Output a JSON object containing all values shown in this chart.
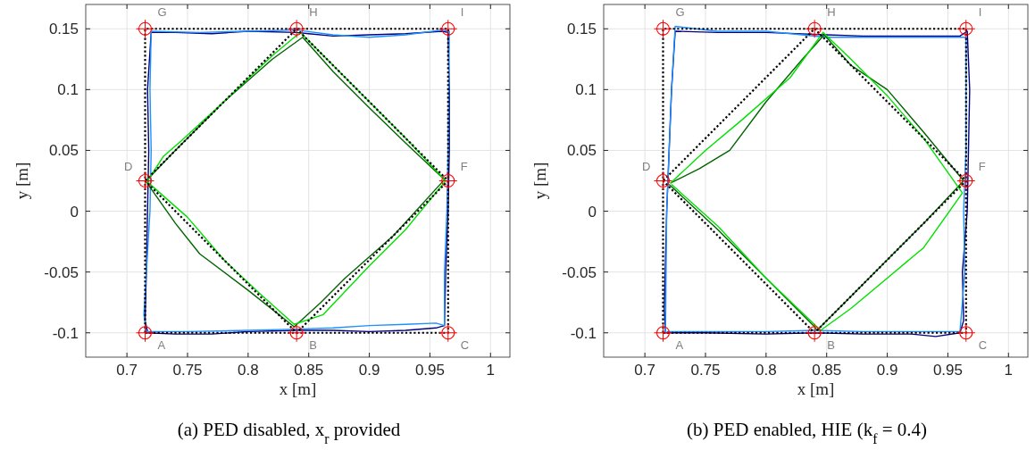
{
  "chart_data": [
    {
      "type": "line",
      "title": "(a) PED disabled, x$_{r}$ provided",
      "xlabel": "x [m]",
      "ylabel": "y [m]",
      "xlim": [
        0.666,
        1.016
      ],
      "ylim": [
        -0.12,
        0.17
      ],
      "xticks": [
        0.7,
        0.75,
        0.8,
        0.85,
        0.9,
        0.95,
        1
      ],
      "yticks": [
        -0.1,
        -0.05,
        0,
        0.05,
        0.1,
        0.15
      ],
      "grid": true,
      "annotations": [
        {
          "text": "A",
          "x": 0.715,
          "y": -0.1
        },
        {
          "text": "B",
          "x": 0.84,
          "y": -0.1
        },
        {
          "text": "C",
          "x": 0.965,
          "y": -0.1
        },
        {
          "text": "D",
          "x": 0.715,
          "y": 0.025
        },
        {
          "text": "F",
          "x": 0.965,
          "y": 0.025
        },
        {
          "text": "G",
          "x": 0.715,
          "y": 0.15
        },
        {
          "text": "H",
          "x": 0.84,
          "y": 0.15
        },
        {
          "text": "I",
          "x": 0.965,
          "y": 0.15
        }
      ],
      "series": [
        {
          "color": "#000080",
          "x": [
            0.716,
            0.74,
            0.77,
            0.8,
            0.84,
            0.87,
            0.9,
            0.93,
            0.955,
            0.962,
            0.963,
            0.965,
            0.966,
            0.966,
            0.965,
            0.96,
            0.93,
            0.9,
            0.87,
            0.85,
            0.84,
            0.8,
            0.77,
            0.74,
            0.72,
            0.717,
            0.718,
            0.717,
            0.716,
            0.715,
            0.717
          ],
          "values": [
            -0.1,
            -0.101,
            -0.101,
            -0.099,
            -0.098,
            -0.098,
            -0.099,
            -0.098,
            -0.096,
            -0.094,
            -0.05,
            0,
            0.05,
            0.1,
            0.147,
            0.148,
            0.146,
            0.145,
            0.144,
            0.146,
            0.147,
            0.148,
            0.146,
            0.147,
            0.147,
            0.1,
            0.05,
            0,
            -0.05,
            -0.09,
            -0.099
          ]
        },
        {
          "color": "#1e90ff",
          "x": [
            0.717,
            0.75,
            0.8,
            0.84,
            0.87,
            0.9,
            0.93,
            0.955,
            0.962,
            0.962,
            0.964,
            0.965,
            0.966,
            0.96,
            0.93,
            0.9,
            0.87,
            0.84,
            0.8,
            0.76,
            0.72,
            0.719,
            0.72,
            0.719,
            0.714,
            0.716
          ],
          "values": [
            -0.099,
            -0.099,
            -0.098,
            -0.097,
            -0.096,
            -0.094,
            -0.093,
            -0.092,
            -0.094,
            -0.05,
            0,
            0.05,
            0.148,
            0.149,
            0.145,
            0.143,
            0.145,
            0.149,
            0.148,
            0.147,
            0.148,
            0.1,
            0.05,
            0,
            -0.085,
            -0.1
          ]
        },
        {
          "color": "#006400",
          "x": [
            0.716,
            0.74,
            0.76,
            0.8,
            0.838,
            0.86,
            0.88,
            0.92,
            0.962,
            0.93,
            0.9,
            0.87,
            0.845,
            0.82,
            0.78,
            0.75,
            0.735,
            0.716
          ],
          "values": [
            0.024,
            -0.01,
            -0.035,
            -0.065,
            -0.095,
            -0.075,
            -0.055,
            -0.02,
            0.026,
            0.056,
            0.085,
            0.115,
            0.143,
            0.125,
            0.09,
            0.06,
            0.045,
            0.025
          ]
        },
        {
          "color": "#00e000",
          "x": [
            0.717,
            0.75,
            0.78,
            0.81,
            0.838,
            0.862,
            0.9,
            0.93,
            0.963,
            0.93,
            0.9,
            0.87,
            0.843,
            0.82,
            0.78,
            0.745,
            0.73,
            0.717
          ],
          "values": [
            0.024,
            -0.005,
            -0.04,
            -0.068,
            -0.093,
            -0.085,
            -0.045,
            -0.015,
            0.025,
            0.06,
            0.09,
            0.12,
            0.147,
            0.128,
            0.09,
            0.058,
            0.045,
            0.025
          ]
        },
        {
          "color": "#000000",
          "line_style": "dotted",
          "x": [
            0.715,
            0.84,
            0.965,
            0.965,
            0.965,
            0.84,
            0.715,
            0.715,
            0.84,
            0.965,
            0.84,
            0.715,
            null,
            0.715,
            0.715
          ],
          "values": [
            -0.1,
            -0.1,
            -0.1,
            0.025,
            0.15,
            0.15,
            0.15,
            0.025,
            -0.1,
            0.025,
            0.15,
            0.025,
            null,
            -0.1,
            0.025
          ]
        },
        {
          "type": "scatter",
          "marker": "circle",
          "color": "#ff0000",
          "x": [
            0.715,
            0.84,
            0.965,
            0.715,
            0.965,
            0.715,
            0.84,
            0.965
          ],
          "values": [
            -0.1,
            -0.1,
            -0.1,
            0.025,
            0.025,
            0.15,
            0.15,
            0.15
          ]
        }
      ]
    },
    {
      "type": "line",
      "title": "(b) PED enabled, HIE (k$_{f}$ = 0.4)",
      "xlabel": "x [m]",
      "ylabel": "y [m]",
      "xlim": [
        0.666,
        1.016
      ],
      "ylim": [
        -0.12,
        0.17
      ],
      "xticks": [
        0.7,
        0.75,
        0.8,
        0.85,
        0.9,
        0.95,
        1
      ],
      "yticks": [
        -0.1,
        -0.05,
        0,
        0.05,
        0.1,
        0.15
      ],
      "grid": true,
      "annotations": [
        {
          "text": "A",
          "x": 0.715,
          "y": -0.1
        },
        {
          "text": "B",
          "x": 0.84,
          "y": -0.1
        },
        {
          "text": "C",
          "x": 0.965,
          "y": -0.1
        },
        {
          "text": "D",
          "x": 0.715,
          "y": 0.025
        },
        {
          "text": "F",
          "x": 0.965,
          "y": 0.025
        },
        {
          "text": "G",
          "x": 0.715,
          "y": 0.15
        },
        {
          "text": "H",
          "x": 0.84,
          "y": 0.15
        },
        {
          "text": "I",
          "x": 0.965,
          "y": 0.15
        }
      ],
      "series": [
        {
          "color": "#000080",
          "x": [
            0.716,
            0.75,
            0.8,
            0.84,
            0.88,
            0.92,
            0.94,
            0.96,
            0.963,
            0.962,
            0.966,
            0.968,
            0.966,
            0.96,
            0.92,
            0.88,
            0.85,
            0.8,
            0.76,
            0.725,
            0.722,
            0.72,
            0.718,
            0.716,
            0.717
          ],
          "values": [
            -0.1,
            -0.1,
            -0.101,
            -0.1,
            -0.101,
            -0.101,
            -0.103,
            -0.1,
            -0.09,
            -0.05,
            0,
            0.1,
            0.148,
            0.144,
            0.144,
            0.144,
            0.145,
            0.147,
            0.147,
            0.148,
            0.1,
            0.05,
            0,
            -0.08,
            -0.099
          ]
        },
        {
          "color": "#1e90ff",
          "x": [
            0.718,
            0.75,
            0.8,
            0.84,
            0.88,
            0.92,
            0.96,
            0.964,
            0.963,
            0.965,
            0.965,
            0.93,
            0.88,
            0.85,
            0.8,
            0.76,
            0.725,
            0.722,
            0.72,
            0.718,
            0.717
          ],
          "values": [
            -0.099,
            -0.099,
            -0.099,
            -0.098,
            -0.099,
            -0.099,
            -0.099,
            -0.05,
            0,
            0.05,
            0.143,
            0.143,
            0.143,
            0.143,
            0.148,
            0.148,
            0.152,
            0.1,
            0.05,
            0,
            -0.1
          ]
        },
        {
          "color": "#006400",
          "x": [
            0.72,
            0.76,
            0.8,
            0.84,
            0.842,
            0.87,
            0.9,
            0.93,
            0.963,
            0.93,
            0.9,
            0.87,
            0.848,
            0.83,
            0.8,
            0.77,
            0.745,
            0.721
          ],
          "values": [
            0.022,
            -0.015,
            -0.055,
            -0.095,
            -0.098,
            -0.07,
            -0.04,
            -0.01,
            0.025,
            0.065,
            0.1,
            0.12,
            0.145,
            0.125,
            0.09,
            0.05,
            0.035,
            0.023
          ]
        },
        {
          "color": "#00e000",
          "x": [
            0.722,
            0.76,
            0.8,
            0.845,
            0.87,
            0.9,
            0.93,
            0.962,
            0.93,
            0.9,
            0.87,
            0.847,
            0.82,
            0.78,
            0.75,
            0.721
          ],
          "values": [
            0.022,
            -0.012,
            -0.055,
            -0.098,
            -0.08,
            -0.055,
            -0.03,
            0.015,
            0.06,
            0.095,
            0.125,
            0.147,
            0.11,
            0.075,
            0.05,
            0.023
          ]
        },
        {
          "color": "#000000",
          "line_style": "dotted",
          "x": [
            0.715,
            0.84,
            0.965,
            0.965,
            0.965,
            0.84,
            0.715,
            0.715,
            0.84,
            0.965,
            0.84,
            0.715,
            null,
            0.715,
            0.715
          ],
          "values": [
            -0.1,
            -0.1,
            -0.1,
            0.025,
            0.15,
            0.15,
            0.15,
            0.025,
            -0.1,
            0.025,
            0.15,
            0.025,
            null,
            -0.1,
            0.025
          ]
        },
        {
          "type": "scatter",
          "marker": "circle",
          "color": "#ff0000",
          "x": [
            0.715,
            0.84,
            0.965,
            0.715,
            0.965,
            0.715,
            0.84,
            0.965
          ],
          "values": [
            -0.1,
            -0.1,
            -0.1,
            0.025,
            0.025,
            0.15,
            0.15,
            0.15
          ]
        }
      ]
    }
  ]
}
